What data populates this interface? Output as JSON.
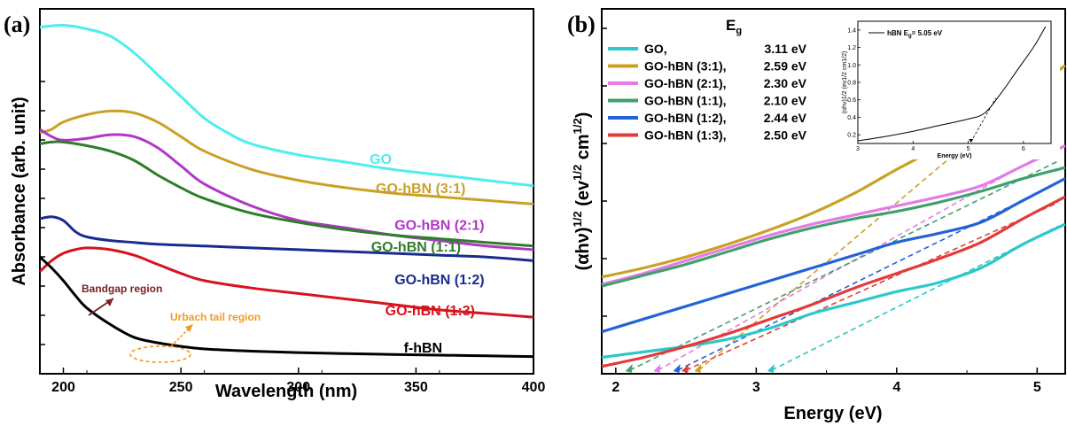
{
  "chart_data": [
    {
      "panel": "(a)",
      "type": "line",
      "xlabel": "Wavelength (nm)",
      "ylabel": "Absorbance (arb. unit)",
      "xlim": [
        190,
        400
      ],
      "ylim": [
        0,
        1
      ],
      "xticks": [
        200,
        250,
        300,
        350,
        400
      ],
      "series": [
        {
          "name": "GO",
          "color": "#4dedf0",
          "x": [
            190,
            200,
            210,
            220,
            230,
            240,
            250,
            260,
            270,
            280,
            300,
            320,
            340,
            360,
            380,
            400
          ],
          "y": [
            0.95,
            0.955,
            0.945,
            0.925,
            0.88,
            0.82,
            0.76,
            0.7,
            0.66,
            0.63,
            0.6,
            0.58,
            0.56,
            0.545,
            0.53,
            0.515
          ]
        },
        {
          "name": "GO-hBN (3:1)",
          "color": "#c9a127",
          "x": [
            190,
            195,
            200,
            210,
            220,
            230,
            240,
            250,
            260,
            280,
            300,
            320,
            340,
            360,
            380,
            400
          ],
          "y": [
            0.66,
            0.67,
            0.69,
            0.71,
            0.72,
            0.715,
            0.69,
            0.65,
            0.61,
            0.56,
            0.53,
            0.51,
            0.495,
            0.485,
            0.475,
            0.465
          ]
        },
        {
          "name": "GO-hBN (2:1)",
          "color": "#b135c8",
          "x": [
            190,
            195,
            200,
            210,
            220,
            230,
            240,
            250,
            260,
            280,
            300,
            320,
            340,
            360,
            380,
            400
          ],
          "y": [
            0.67,
            0.65,
            0.64,
            0.645,
            0.655,
            0.65,
            0.62,
            0.57,
            0.52,
            0.46,
            0.42,
            0.4,
            0.38,
            0.365,
            0.35,
            0.34
          ]
        },
        {
          "name": "GO-hBN (1:1)",
          "color": "#2e7d2a",
          "x": [
            190,
            195,
            200,
            210,
            220,
            230,
            240,
            250,
            260,
            280,
            300,
            320,
            340,
            360,
            380,
            400
          ],
          "y": [
            0.63,
            0.635,
            0.635,
            0.625,
            0.61,
            0.585,
            0.545,
            0.51,
            0.48,
            0.44,
            0.415,
            0.395,
            0.38,
            0.37,
            0.36,
            0.35
          ]
        },
        {
          "name": "GO-hBN (1:2)",
          "color": "#1a2b8f",
          "x": [
            190,
            195,
            200,
            205,
            210,
            220,
            230,
            240,
            260,
            280,
            300,
            320,
            340,
            360,
            380,
            400
          ],
          "y": [
            0.425,
            0.43,
            0.42,
            0.39,
            0.375,
            0.365,
            0.36,
            0.355,
            0.35,
            0.345,
            0.34,
            0.335,
            0.33,
            0.325,
            0.32,
            0.31
          ]
        },
        {
          "name": "GO-hBN (1:3)",
          "color": "#d8131e",
          "x": [
            190,
            195,
            200,
            205,
            210,
            220,
            230,
            240,
            250,
            260,
            280,
            300,
            320,
            340,
            360,
            380,
            400
          ],
          "y": [
            0.28,
            0.31,
            0.33,
            0.34,
            0.345,
            0.34,
            0.325,
            0.3,
            0.275,
            0.255,
            0.235,
            0.22,
            0.205,
            0.19,
            0.175,
            0.165,
            0.155
          ]
        },
        {
          "name": "f-hBN",
          "color": "#000000",
          "x": [
            190,
            195,
            200,
            205,
            210,
            220,
            230,
            240,
            250,
            260,
            280,
            300,
            320,
            340,
            360,
            380,
            400
          ],
          "y": [
            0.32,
            0.29,
            0.255,
            0.215,
            0.18,
            0.135,
            0.1,
            0.085,
            0.075,
            0.068,
            0.062,
            0.058,
            0.055,
            0.053,
            0.051,
            0.049,
            0.047
          ]
        }
      ],
      "curve_labels": [
        {
          "text": "GO",
          "color": "#4dedf0",
          "x": 335,
          "y": 0.575
        },
        {
          "text": "GO-hBN (3:1)",
          "color": "#c9a127",
          "x": 352,
          "y": 0.495
        },
        {
          "text": "GO-hBN (2:1)",
          "color": "#b135c8",
          "x": 360,
          "y": 0.395
        },
        {
          "text": "GO-hBN (1:1)",
          "color": "#2e7d2a",
          "x": 350,
          "y": 0.335
        },
        {
          "text": "GO-hBN (1:2)",
          "color": "#1a2b8f",
          "x": 360,
          "y": 0.245
        },
        {
          "text": "GO-hBN (1:3)",
          "color": "#d8131e",
          "x": 356,
          "y": 0.16
        },
        {
          "text": "f-hBN",
          "color": "#000000",
          "x": 353,
          "y": 0.058
        }
      ],
      "annotations": [
        {
          "text": "Bandgap region",
          "color": "#7a1f1f"
        },
        {
          "text": "Urbach tail region",
          "color": "#f29a1f"
        }
      ]
    },
    {
      "panel": "(b)",
      "type": "line",
      "xlabel": "Energy (eV)",
      "ylabel_parts": [
        "(αhν)",
        "1/2",
        " (ev",
        "1/2",
        " cm",
        "1/2",
        ")"
      ],
      "xlim": [
        1.9,
        5.2
      ],
      "ylim": [
        0,
        1
      ],
      "xticks": [
        2,
        3,
        4,
        5
      ],
      "legend_title": "E",
      "legend_title_sub": "g",
      "legend_placement": "top-left",
      "series": [
        {
          "name": "GO,",
          "eg": "3.11 eV",
          "color": "#2bc8c8",
          "x": [
            1.9,
            2.2,
            2.5,
            2.8,
            3.1,
            3.4,
            3.7,
            4.0,
            4.3,
            4.6,
            4.9,
            5.2
          ],
          "y": [
            0.045,
            0.06,
            0.075,
            0.095,
            0.125,
            0.165,
            0.195,
            0.225,
            0.25,
            0.29,
            0.355,
            0.41
          ]
        },
        {
          "name": "GO-hBN (3:1),",
          "eg": "2.59 eV",
          "color": "#c9a127",
          "x": [
            1.9,
            2.2,
            2.5,
            2.8,
            3.1,
            3.4,
            3.7,
            4.0,
            4.3,
            4.6,
            4.9,
            5.2
          ],
          "y": [
            0.265,
            0.29,
            0.32,
            0.355,
            0.395,
            0.44,
            0.495,
            0.56,
            0.62,
            0.675,
            0.76,
            0.845
          ]
        },
        {
          "name": "GO-hBN (2:1),",
          "eg": "2.30 eV",
          "color": "#e67be8",
          "x": [
            1.9,
            2.2,
            2.5,
            2.8,
            3.1,
            3.4,
            3.7,
            4.0,
            4.3,
            4.6,
            4.9,
            5.2
          ],
          "y": [
            0.245,
            0.275,
            0.31,
            0.345,
            0.38,
            0.41,
            0.435,
            0.46,
            0.485,
            0.515,
            0.57,
            0.625
          ]
        },
        {
          "name": "GO-hBN (1:1),",
          "eg": "2.10 eV",
          "color": "#3fa16b",
          "x": [
            1.9,
            2.2,
            2.5,
            2.8,
            3.1,
            3.4,
            3.7,
            4.0,
            4.3,
            4.6,
            4.9,
            5.2
          ],
          "y": [
            0.24,
            0.27,
            0.3,
            0.335,
            0.37,
            0.4,
            0.425,
            0.445,
            0.47,
            0.5,
            0.535,
            0.565
          ]
        },
        {
          "name": "GO-hBN (1:2),",
          "eg": "2.44 eV",
          "color": "#2462d8",
          "x": [
            1.9,
            2.2,
            2.5,
            2.8,
            3.1,
            3.4,
            3.7,
            4.0,
            4.3,
            4.6,
            4.9,
            5.2
          ],
          "y": [
            0.115,
            0.15,
            0.185,
            0.22,
            0.255,
            0.29,
            0.325,
            0.36,
            0.385,
            0.415,
            0.475,
            0.535
          ]
        },
        {
          "name": "GO-hBN (1:3),",
          "eg": "2.50 eV",
          "color": "#e53a3a",
          "x": [
            1.9,
            2.2,
            2.5,
            2.8,
            3.1,
            3.4,
            3.7,
            4.0,
            4.3,
            4.6,
            4.9,
            5.2
          ],
          "y": [
            0.02,
            0.045,
            0.075,
            0.11,
            0.15,
            0.19,
            0.235,
            0.275,
            0.315,
            0.36,
            0.425,
            0.485
          ]
        }
      ],
      "inset": {
        "legend": "hBN  E",
        "legend_sub": "g",
        "legend_value": "= 5.05 eV",
        "xlabel": "Energy (eV)",
        "ylabel": "(αhν)1/2 (ev1/2 cm1/2)",
        "xlim": [
          3,
          6.5
        ],
        "ylim": [
          0.1,
          1.5
        ],
        "xticks": [
          3,
          4,
          5,
          6
        ],
        "yticks": [
          0.2,
          0.4,
          0.6,
          0.8,
          1.0,
          1.2,
          1.4
        ],
        "x": [
          3.0,
          3.5,
          4.0,
          4.5,
          5.0,
          5.3,
          5.6,
          5.9,
          6.2,
          6.4
        ],
        "y": [
          0.13,
          0.18,
          0.24,
          0.31,
          0.38,
          0.45,
          0.68,
          0.95,
          1.22,
          1.44
        ],
        "eg_value": 5.05
      }
    }
  ]
}
